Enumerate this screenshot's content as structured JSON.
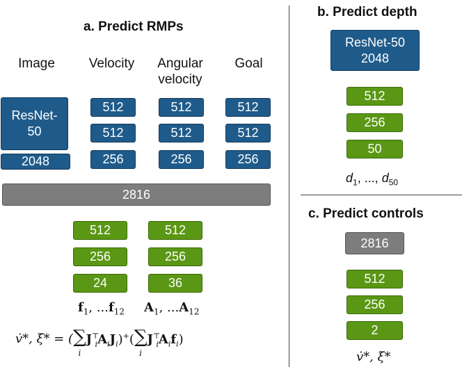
{
  "section_a": {
    "title": "a. Predict RMPs",
    "inputs": {
      "image": "Image",
      "velocity": "Velocity",
      "angular_velocity_line1": "Angular",
      "angular_velocity_line2": "velocity",
      "goal": "Goal"
    },
    "resnet_line1": "ResNet-",
    "resnet_line2": "50",
    "resnet_feat": "2048",
    "velocity_layers": [
      "512",
      "512",
      "256"
    ],
    "angular_layers": [
      "512",
      "512",
      "256"
    ],
    "goal_layers": [
      "512",
      "512",
      "256"
    ],
    "concat": "2816",
    "f_head": [
      "512",
      "256",
      "24"
    ],
    "a_head": [
      "512",
      "256",
      "36"
    ],
    "f_label_1": "f",
    "f_sub_1": "1",
    "f_mid": ", ...",
    "f_label_2": "f",
    "f_sub_2": "12",
    "a_label_1": "A",
    "a_sub_1": "1",
    "a_mid": ", ...",
    "a_label_2": "A",
    "a_sub_2": "12",
    "equation": {
      "lhs": "v̇*, ξ̇* = (",
      "sum": "∑",
      "sub": "i",
      "term1": "J",
      "term1_sub": "i",
      "term1_sup": "⊤",
      "term1_rest": "A",
      "term1_rest_sub": "i",
      "term1_end": "J",
      "term1_end_sub": "i",
      "close1": ")",
      "plus": "+",
      "open2": "(",
      "term2": "J",
      "term2_sub": "i",
      "term2_sup": "⊤",
      "term2_rest": "A",
      "term2_rest_sub": "i",
      "term2_end": "f",
      "term2_end_sub": "i",
      "close2": ")"
    }
  },
  "section_b": {
    "title": "b. Predict depth",
    "resnet_line1": "ResNet-50",
    "resnet_line2": "2048",
    "layers": [
      "512",
      "256",
      "50"
    ],
    "output_d": "d",
    "output_sub1": "1",
    "output_mid": ", ..., ",
    "output_d2": "d",
    "output_sub2": "50"
  },
  "section_c": {
    "title": "c. Predict controls",
    "input": "2816",
    "layers": [
      "512",
      "256",
      "2"
    ],
    "output": "v̇*, ξ̇*"
  }
}
